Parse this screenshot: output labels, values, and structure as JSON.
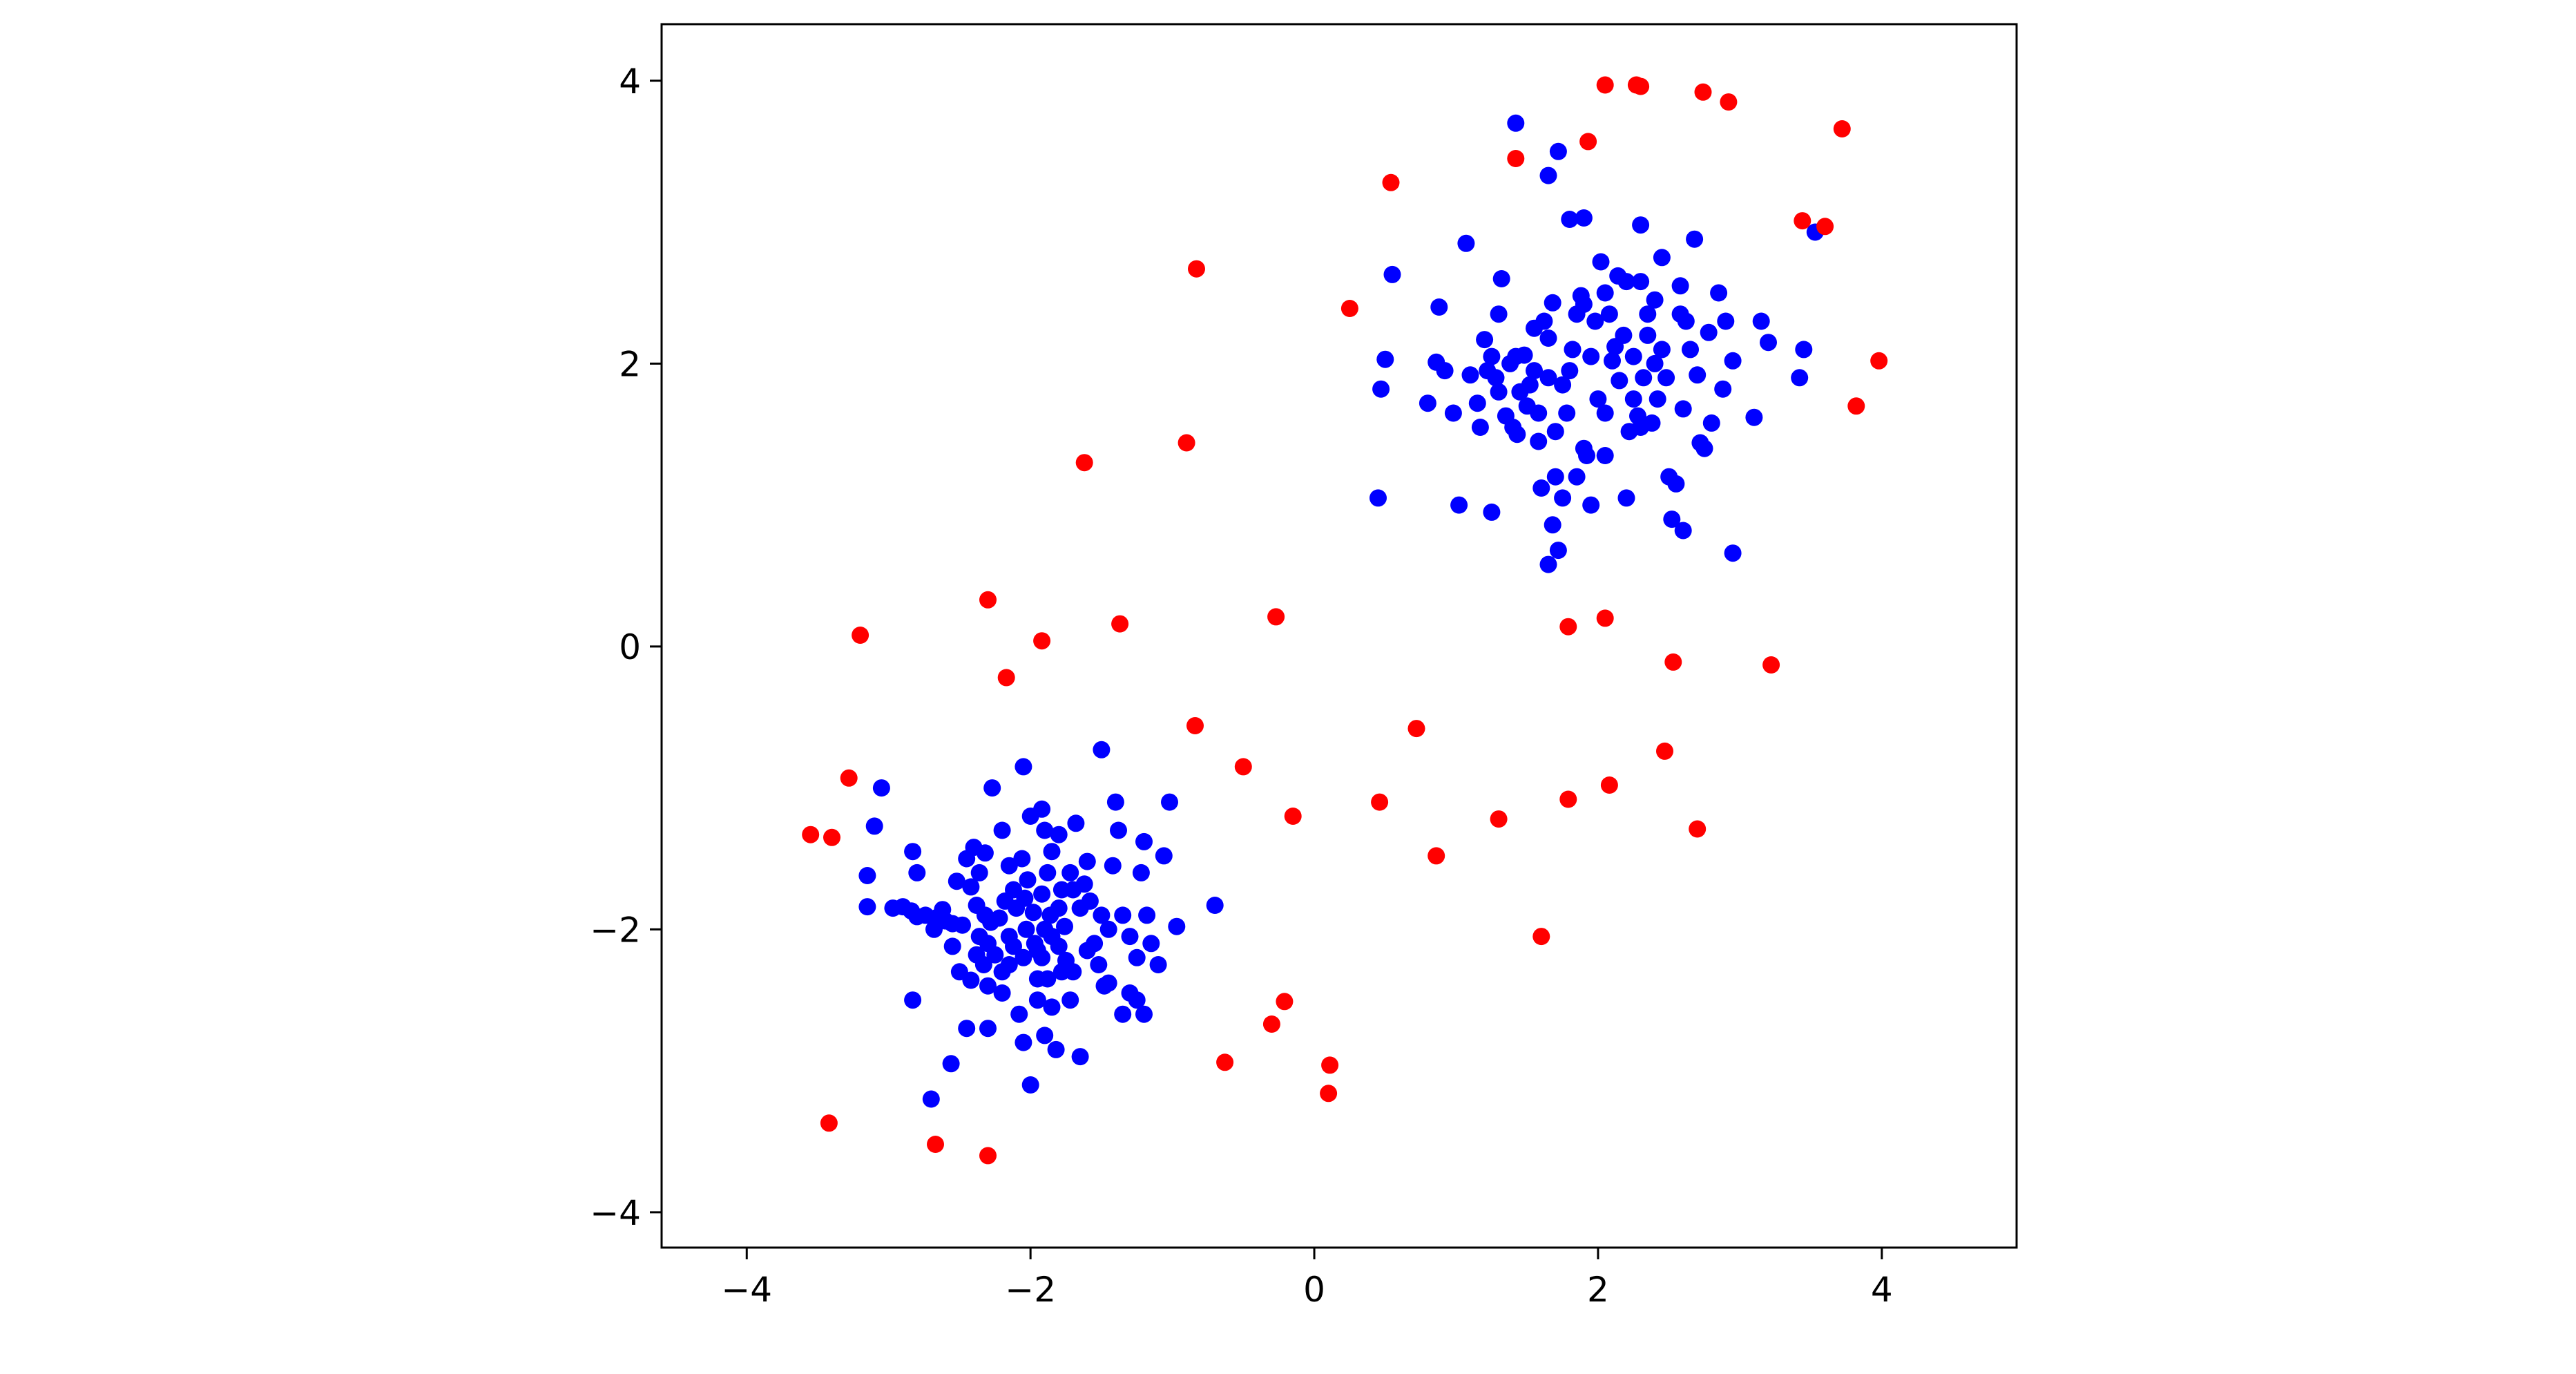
{
  "chart_data": {
    "type": "scatter",
    "title": "",
    "xlabel": "",
    "ylabel": "",
    "xlim": [
      -4.6,
      4.95
    ],
    "ylim": [
      -4.25,
      4.4
    ],
    "grid": false,
    "legend": "none",
    "x_ticks": [
      -4,
      -2,
      0,
      2,
      4
    ],
    "y_ticks": [
      -4,
      -2,
      0,
      2,
      4
    ],
    "x_tick_labels": [
      "−4",
      "−2",
      "0",
      "2",
      "4"
    ],
    "y_tick_labels": [
      "−4",
      "−2",
      "0",
      "2",
      "4"
    ],
    "series": [
      {
        "color": "#0000ff",
        "points": [
          [
            -3.05,
            -1.0
          ],
          [
            -3.1,
            -1.27
          ],
          [
            -3.15,
            -1.62
          ],
          [
            -3.15,
            -1.84
          ],
          [
            -2.97,
            -1.85
          ],
          [
            -2.9,
            -1.84
          ],
          [
            -2.84,
            -1.87
          ],
          [
            -2.8,
            -1.91
          ],
          [
            -2.83,
            -1.45
          ],
          [
            -2.8,
            -1.6
          ],
          [
            -2.74,
            -1.9
          ],
          [
            -2.67,
            -1.92
          ],
          [
            -2.62,
            -1.86
          ],
          [
            -2.83,
            -2.5
          ],
          [
            -2.7,
            -3.2
          ],
          [
            -2.56,
            -2.95
          ],
          [
            -2.55,
            -2.12
          ],
          [
            -2.5,
            -2.3
          ],
          [
            -2.52,
            -1.66
          ],
          [
            -2.45,
            -1.5
          ],
          [
            -2.4,
            -1.42
          ],
          [
            -2.36,
            -1.6
          ],
          [
            -2.42,
            -1.7
          ],
          [
            -2.38,
            -1.83
          ],
          [
            -2.32,
            -1.46
          ],
          [
            -2.27,
            -1.0
          ],
          [
            -2.32,
            -1.9
          ],
          [
            -2.28,
            -1.95
          ],
          [
            -2.36,
            -2.05
          ],
          [
            -2.3,
            -2.1
          ],
          [
            -2.25,
            -2.18
          ],
          [
            -2.33,
            -2.25
          ],
          [
            -2.42,
            -2.36
          ],
          [
            -2.3,
            -2.4
          ],
          [
            -2.45,
            -2.7
          ],
          [
            -2.3,
            -2.7
          ],
          [
            -2.2,
            -1.3
          ],
          [
            -2.15,
            -1.55
          ],
          [
            -2.12,
            -1.72
          ],
          [
            -2.18,
            -1.8
          ],
          [
            -2.22,
            -1.92
          ],
          [
            -2.15,
            -2.05
          ],
          [
            -2.2,
            -2.3
          ],
          [
            -2.2,
            -2.45
          ],
          [
            -2.15,
            -2.25
          ],
          [
            -2.1,
            -1.85
          ],
          [
            -2.05,
            -0.85
          ],
          [
            -2.0,
            -1.2
          ],
          [
            -2.06,
            -1.5
          ],
          [
            -2.02,
            -1.65
          ],
          [
            -2.04,
            -1.78
          ],
          [
            -1.98,
            -1.88
          ],
          [
            -2.03,
            -2.0
          ],
          [
            -1.97,
            -2.1
          ],
          [
            -2.05,
            -2.2
          ],
          [
            -1.95,
            -2.35
          ],
          [
            -2.08,
            -2.6
          ],
          [
            -2.05,
            -2.8
          ],
          [
            -2.0,
            -3.1
          ],
          [
            -1.92,
            -1.15
          ],
          [
            -1.9,
            -1.3
          ],
          [
            -1.85,
            -1.45
          ],
          [
            -1.88,
            -1.6
          ],
          [
            -1.92,
            -1.75
          ],
          [
            -1.86,
            -1.9
          ],
          [
            -1.9,
            -2.0
          ],
          [
            -1.85,
            -2.05
          ],
          [
            -1.92,
            -2.2
          ],
          [
            -1.88,
            -2.35
          ],
          [
            -1.95,
            -2.5
          ],
          [
            -1.85,
            -2.55
          ],
          [
            -1.9,
            -2.75
          ],
          [
            -1.82,
            -2.85
          ],
          [
            -1.8,
            -1.33
          ],
          [
            -1.78,
            -1.72
          ],
          [
            -1.8,
            -1.85
          ],
          [
            -1.76,
            -1.98
          ],
          [
            -1.8,
            -2.12
          ],
          [
            -1.75,
            -2.22
          ],
          [
            -1.78,
            -2.3
          ],
          [
            -1.72,
            -2.5
          ],
          [
            -1.68,
            -1.25
          ],
          [
            -1.7,
            -1.72
          ],
          [
            -1.65,
            -1.85
          ],
          [
            -1.7,
            -2.3
          ],
          [
            -1.65,
            -2.9
          ],
          [
            -1.6,
            -1.52
          ],
          [
            -1.62,
            -1.68
          ],
          [
            -1.58,
            -1.8
          ],
          [
            -1.55,
            -2.1
          ],
          [
            -1.5,
            -1.9
          ],
          [
            -1.52,
            -2.25
          ],
          [
            -1.48,
            -2.4
          ],
          [
            -1.45,
            -2.0
          ],
          [
            -1.5,
            -0.73
          ],
          [
            -1.4,
            -1.1
          ],
          [
            -1.38,
            -1.3
          ],
          [
            -1.42,
            -1.55
          ],
          [
            -1.35,
            -1.9
          ],
          [
            -1.3,
            -2.05
          ],
          [
            -1.25,
            -2.2
          ],
          [
            -1.3,
            -2.45
          ],
          [
            -1.25,
            -2.5
          ],
          [
            -1.2,
            -1.38
          ],
          [
            -1.22,
            -1.6
          ],
          [
            -1.18,
            -1.9
          ],
          [
            -1.15,
            -2.1
          ],
          [
            -1.1,
            -2.25
          ],
          [
            -1.06,
            -1.48
          ],
          [
            -1.02,
            -1.1
          ],
          [
            -0.97,
            -1.98
          ],
          [
            -0.7,
            -1.83
          ],
          [
            -1.2,
            -2.6
          ],
          [
            -1.35,
            -2.6
          ],
          [
            -1.45,
            -2.38
          ],
          [
            -1.6,
            -2.15
          ],
          [
            -2.55,
            -1.96
          ],
          [
            -2.48,
            -1.97
          ],
          [
            -2.6,
            -1.94
          ],
          [
            -2.68,
            -2.0
          ],
          [
            -2.38,
            -2.18
          ],
          [
            -2.12,
            -2.12
          ],
          [
            -1.95,
            -2.15
          ],
          [
            -1.72,
            -1.6
          ],
          [
            0.45,
            1.05
          ],
          [
            0.47,
            1.82
          ],
          [
            0.5,
            2.03
          ],
          [
            0.55,
            2.63
          ],
          [
            0.8,
            1.72
          ],
          [
            0.88,
            2.4
          ],
          [
            0.86,
            2.01
          ],
          [
            0.92,
            1.95
          ],
          [
            0.98,
            1.65
          ],
          [
            1.02,
            1.0
          ],
          [
            1.07,
            2.85
          ],
          [
            1.1,
            1.92
          ],
          [
            1.15,
            1.72
          ],
          [
            1.17,
            1.55
          ],
          [
            1.2,
            2.17
          ],
          [
            1.22,
            1.95
          ],
          [
            1.25,
            0.95
          ],
          [
            1.25,
            2.05
          ],
          [
            1.3,
            2.35
          ],
          [
            1.32,
            2.6
          ],
          [
            1.3,
            1.8
          ],
          [
            1.35,
            1.63
          ],
          [
            1.38,
            2.0
          ],
          [
            1.4,
            1.55
          ],
          [
            1.43,
            1.5
          ],
          [
            1.45,
            1.8
          ],
          [
            1.48,
            2.06
          ],
          [
            1.5,
            1.7
          ],
          [
            1.52,
            1.85
          ],
          [
            1.55,
            1.95
          ],
          [
            1.58,
            1.45
          ],
          [
            1.6,
            1.12
          ],
          [
            1.62,
            2.3
          ],
          [
            1.65,
            1.9
          ],
          [
            1.65,
            2.18
          ],
          [
            1.68,
            2.43
          ],
          [
            1.7,
            1.52
          ],
          [
            1.7,
            1.2
          ],
          [
            1.72,
            0.68
          ],
          [
            1.65,
            0.58
          ],
          [
            1.68,
            0.86
          ],
          [
            1.75,
            1.05
          ],
          [
            1.78,
            1.65
          ],
          [
            1.8,
            1.95
          ],
          [
            1.82,
            2.1
          ],
          [
            1.85,
            2.35
          ],
          [
            1.88,
            2.48
          ],
          [
            1.9,
            1.4
          ],
          [
            1.92,
            1.35
          ],
          [
            1.95,
            1.0
          ],
          [
            1.95,
            2.05
          ],
          [
            1.98,
            2.3
          ],
          [
            2.0,
            1.75
          ],
          [
            2.02,
            2.72
          ],
          [
            2.05,
            1.65
          ],
          [
            2.08,
            2.35
          ],
          [
            2.1,
            2.02
          ],
          [
            2.12,
            2.12
          ],
          [
            2.14,
            2.62
          ],
          [
            2.15,
            1.88
          ],
          [
            2.18,
            2.2
          ],
          [
            2.2,
            1.05
          ],
          [
            2.22,
            1.52
          ],
          [
            2.25,
            2.05
          ],
          [
            2.28,
            1.63
          ],
          [
            2.3,
            2.58
          ],
          [
            2.32,
            1.9
          ],
          [
            2.35,
            2.2
          ],
          [
            2.38,
            1.58
          ],
          [
            2.4,
            2.45
          ],
          [
            2.42,
            1.75
          ],
          [
            2.45,
            2.1
          ],
          [
            2.48,
            1.9
          ],
          [
            2.5,
            1.2
          ],
          [
            2.52,
            0.9
          ],
          [
            2.55,
            1.15
          ],
          [
            2.58,
            2.35
          ],
          [
            2.6,
            1.68
          ],
          [
            2.6,
            0.82
          ],
          [
            2.65,
            2.1
          ],
          [
            2.68,
            2.88
          ],
          [
            2.7,
            1.92
          ],
          [
            2.72,
            1.44
          ],
          [
            2.75,
            1.4
          ],
          [
            2.78,
            2.22
          ],
          [
            2.8,
            1.58
          ],
          [
            2.85,
            2.5
          ],
          [
            2.88,
            1.82
          ],
          [
            2.9,
            2.3
          ],
          [
            2.95,
            2.02
          ],
          [
            2.95,
            0.66
          ],
          [
            3.1,
            1.62
          ],
          [
            3.15,
            2.3
          ],
          [
            3.2,
            2.15
          ],
          [
            3.42,
            1.9
          ],
          [
            3.45,
            2.1
          ],
          [
            3.53,
            2.93
          ],
          [
            1.42,
            3.7
          ],
          [
            1.65,
            3.33
          ],
          [
            1.72,
            3.5
          ],
          [
            1.8,
            3.02
          ],
          [
            1.9,
            3.03
          ],
          [
            2.3,
            2.98
          ],
          [
            2.45,
            2.75
          ],
          [
            1.9,
            2.42
          ],
          [
            2.05,
            2.5
          ],
          [
            2.2,
            2.58
          ],
          [
            2.58,
            2.55
          ],
          [
            2.62,
            2.3
          ],
          [
            1.42,
            2.05
          ],
          [
            1.28,
            1.9
          ],
          [
            1.58,
            1.65
          ],
          [
            1.75,
            1.85
          ],
          [
            2.3,
            1.55
          ],
          [
            2.4,
            2.0
          ],
          [
            2.05,
            1.35
          ],
          [
            2.25,
            1.75
          ],
          [
            1.55,
            2.25
          ],
          [
            2.35,
            2.35
          ],
          [
            1.85,
            1.2
          ]
        ]
      },
      {
        "color": "#ff0000",
        "points": [
          [
            -3.55,
            -1.33
          ],
          [
            -3.4,
            -1.35
          ],
          [
            -3.28,
            -0.93
          ],
          [
            -3.2,
            0.08
          ],
          [
            -3.42,
            -3.37
          ],
          [
            -2.67,
            -3.52
          ],
          [
            -2.3,
            -3.6
          ],
          [
            -2.3,
            0.33
          ],
          [
            -2.17,
            -0.22
          ],
          [
            -1.92,
            0.04
          ],
          [
            -1.62,
            1.3
          ],
          [
            -1.37,
            0.16
          ],
          [
            -0.9,
            1.44
          ],
          [
            -0.83,
            2.67
          ],
          [
            -0.84,
            -0.56
          ],
          [
            -0.5,
            -0.85
          ],
          [
            -0.27,
            0.21
          ],
          [
            -0.63,
            -2.94
          ],
          [
            -0.3,
            -2.67
          ],
          [
            -0.21,
            -2.51
          ],
          [
            -0.15,
            -1.2
          ],
          [
            0.11,
            -2.96
          ],
          [
            0.1,
            -3.16
          ],
          [
            0.25,
            2.39
          ],
          [
            0.46,
            -1.1
          ],
          [
            0.54,
            3.28
          ],
          [
            0.72,
            -0.58
          ],
          [
            0.86,
            -1.48
          ],
          [
            1.3,
            -1.22
          ],
          [
            1.42,
            3.45
          ],
          [
            1.6,
            -2.05
          ],
          [
            1.79,
            -1.08
          ],
          [
            1.79,
            0.14
          ],
          [
            1.93,
            3.57
          ],
          [
            2.05,
            3.97
          ],
          [
            2.05,
            0.2
          ],
          [
            2.08,
            -0.98
          ],
          [
            2.27,
            3.97
          ],
          [
            2.3,
            3.96
          ],
          [
            2.47,
            -0.74
          ],
          [
            2.53,
            -0.11
          ],
          [
            2.7,
            -1.29
          ],
          [
            2.74,
            3.92
          ],
          [
            2.92,
            3.85
          ],
          [
            3.22,
            -0.13
          ],
          [
            3.44,
            3.01
          ],
          [
            3.6,
            2.97
          ],
          [
            3.72,
            3.66
          ],
          [
            3.82,
            1.7
          ],
          [
            3.98,
            2.02
          ]
        ]
      }
    ]
  }
}
